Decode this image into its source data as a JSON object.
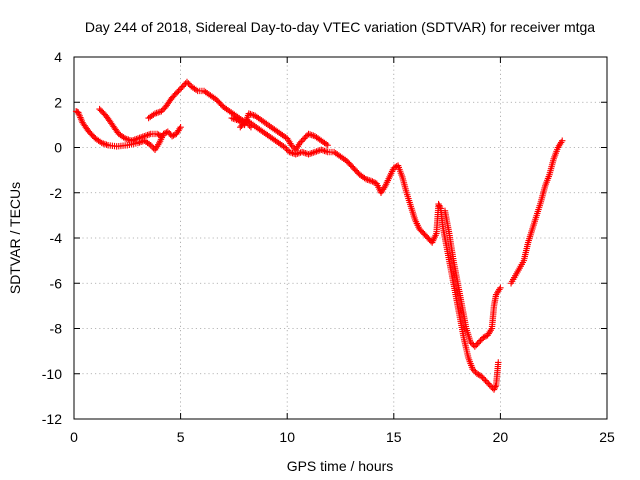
{
  "chart_data": {
    "type": "scatter",
    "title": "Day 244 of 2018, Sidereal Day-to-day VTEC variation (SDTVAR) for receiver mtga",
    "xlabel": "GPS time / hours",
    "ylabel": "SDTVAR / TECUs",
    "xlim": [
      0,
      25
    ],
    "ylim": [
      -12,
      4
    ],
    "xticks": [
      0,
      5,
      10,
      15,
      20,
      25
    ],
    "yticks": [
      -12,
      -10,
      -8,
      -6,
      -4,
      -2,
      0,
      2,
      4
    ],
    "grid": true,
    "marker": "plus",
    "color": "#ff0000",
    "series": [
      {
        "segments": [
          [
            [
              0.1,
              1.6
            ],
            [
              0.2,
              1.55
            ],
            [
              0.4,
              1.1
            ],
            [
              0.7,
              0.7
            ],
            [
              1.0,
              0.4
            ],
            [
              1.3,
              0.2
            ],
            [
              1.6,
              0.1
            ],
            [
              2.0,
              0.05
            ],
            [
              2.5,
              0.1
            ],
            [
              3.0,
              0.2
            ],
            [
              3.3,
              0.3
            ],
            [
              3.6,
              0.1
            ],
            [
              3.8,
              -0.1
            ],
            [
              4.0,
              0.2
            ],
            [
              4.2,
              0.6
            ],
            [
              4.4,
              0.7
            ],
            [
              4.6,
              0.5
            ],
            [
              4.8,
              0.6
            ],
            [
              5.0,
              0.9
            ]
          ],
          [
            [
              1.2,
              1.7
            ],
            [
              1.5,
              1.4
            ],
            [
              1.8,
              1.0
            ],
            [
              2.1,
              0.6
            ],
            [
              2.4,
              0.4
            ],
            [
              2.7,
              0.3
            ],
            [
              3.0,
              0.4
            ],
            [
              3.3,
              0.5
            ],
            [
              3.6,
              0.6
            ],
            [
              3.9,
              0.6
            ],
            [
              4.1,
              0.5
            ]
          ],
          [
            [
              3.5,
              1.3
            ],
            [
              3.8,
              1.5
            ],
            [
              4.1,
              1.6
            ],
            [
              4.3,
              1.8
            ],
            [
              4.6,
              2.2
            ],
            [
              4.9,
              2.5
            ],
            [
              5.1,
              2.7
            ],
            [
              5.3,
              2.9
            ],
            [
              5.5,
              2.7
            ],
            [
              5.8,
              2.5
            ],
            [
              6.1,
              2.5
            ],
            [
              6.4,
              2.3
            ],
            [
              6.7,
              2.1
            ],
            [
              7.0,
              1.8
            ],
            [
              7.3,
              1.6
            ],
            [
              7.6,
              1.4
            ],
            [
              7.9,
              1.2
            ],
            [
              8.1,
              1.1
            ],
            [
              8.3,
              0.9
            ]
          ],
          [
            [
              7.4,
              1.3
            ],
            [
              7.7,
              1.2
            ],
            [
              8.0,
              1.0
            ],
            [
              8.2,
              1.5
            ],
            [
              8.5,
              1.4
            ],
            [
              8.8,
              1.2
            ],
            [
              9.1,
              1.0
            ],
            [
              9.4,
              0.8
            ],
            [
              9.7,
              0.6
            ],
            [
              10.0,
              0.4
            ],
            [
              10.2,
              0.1
            ],
            [
              10.4,
              -0.1
            ],
            [
              10.6,
              0.2
            ],
            [
              10.8,
              0.4
            ],
            [
              11.0,
              0.6
            ],
            [
              11.3,
              0.5
            ],
            [
              11.6,
              0.3
            ],
            [
              11.9,
              0.1
            ]
          ],
          [
            [
              7.8,
              0.9
            ],
            [
              8.1,
              1.2
            ],
            [
              8.4,
              1.0
            ],
            [
              8.7,
              0.8
            ],
            [
              9.0,
              0.6
            ],
            [
              9.3,
              0.4
            ],
            [
              9.6,
              0.2
            ],
            [
              9.9,
              0.0
            ],
            [
              10.1,
              -0.2
            ],
            [
              10.4,
              -0.3
            ],
            [
              10.7,
              -0.2
            ],
            [
              11.0,
              -0.3
            ],
            [
              11.3,
              -0.2
            ],
            [
              11.6,
              -0.1
            ],
            [
              11.9,
              -0.2
            ],
            [
              12.2,
              -0.2
            ],
            [
              12.5,
              -0.4
            ],
            [
              12.8,
              -0.6
            ],
            [
              13.1,
              -0.9
            ],
            [
              13.4,
              -1.2
            ],
            [
              13.7,
              -1.4
            ],
            [
              14.0,
              -1.5
            ],
            [
              14.2,
              -1.6
            ],
            [
              14.4,
              -2.0
            ],
            [
              14.6,
              -1.7
            ],
            [
              14.8,
              -1.3
            ],
            [
              15.0,
              -0.9
            ],
            [
              15.2,
              -0.8
            ],
            [
              15.4,
              -1.3
            ],
            [
              15.6,
              -2.0
            ],
            [
              15.8,
              -2.6
            ],
            [
              16.0,
              -3.2
            ],
            [
              16.2,
              -3.6
            ],
            [
              16.5,
              -3.9
            ],
            [
              16.8,
              -4.2
            ],
            [
              17.0,
              -3.8
            ],
            [
              17.1,
              -2.5
            ],
            [
              17.2,
              -2.7
            ],
            [
              17.3,
              -3.5
            ],
            [
              17.5,
              -4.5
            ],
            [
              17.7,
              -5.5
            ],
            [
              17.9,
              -6.5
            ],
            [
              18.1,
              -7.5
            ],
            [
              18.3,
              -8.5
            ],
            [
              18.5,
              -9.3
            ],
            [
              18.7,
              -9.8
            ],
            [
              18.9,
              -10.0
            ],
            [
              19.1,
              -10.1
            ],
            [
              19.3,
              -10.3
            ],
            [
              19.5,
              -10.5
            ],
            [
              19.7,
              -10.7
            ],
            [
              19.8,
              -10.5
            ],
            [
              19.9,
              -9.5
            ]
          ],
          [
            [
              17.4,
              -2.8
            ],
            [
              17.6,
              -3.8
            ],
            [
              17.8,
              -5.0
            ],
            [
              18.0,
              -6.0
            ],
            [
              18.2,
              -7.0
            ],
            [
              18.4,
              -8.0
            ],
            [
              18.6,
              -8.6
            ],
            [
              18.8,
              -8.8
            ],
            [
              19.0,
              -8.6
            ],
            [
              19.2,
              -8.4
            ],
            [
              19.4,
              -8.3
            ],
            [
              19.6,
              -8.0
            ],
            [
              19.7,
              -7.0
            ],
            [
              19.8,
              -6.5
            ],
            [
              20.0,
              -6.2
            ]
          ],
          [
            [
              20.5,
              -6.0
            ],
            [
              20.8,
              -5.5
            ],
            [
              21.1,
              -5.0
            ],
            [
              21.3,
              -4.2
            ],
            [
              21.5,
              -3.6
            ],
            [
              21.7,
              -3.0
            ],
            [
              21.9,
              -2.4
            ],
            [
              22.1,
              -1.7
            ],
            [
              22.3,
              -1.2
            ],
            [
              22.5,
              -0.5
            ],
            [
              22.7,
              0.0
            ],
            [
              22.9,
              0.3
            ]
          ]
        ]
      }
    ]
  }
}
